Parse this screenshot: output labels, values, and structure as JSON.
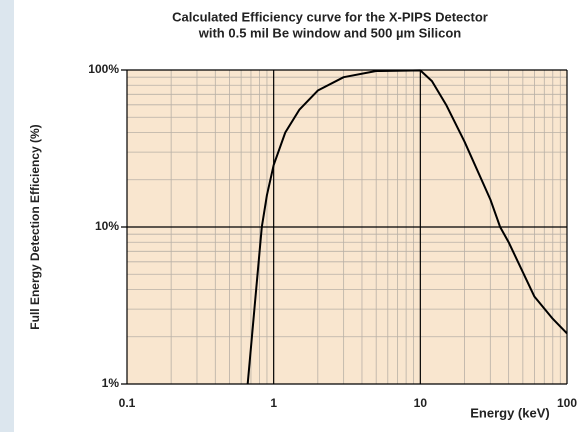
{
  "chart_data": {
    "type": "line",
    "title": [
      "Calculated Efficiency curve for the X-PIPS Detector",
      "with 0.5 mil Be window and 500 µm Silicon"
    ],
    "xlabel": "Energy (keV)",
    "ylabel": "Full Energy Detection Efficiency (%)",
    "xscale": "log",
    "yscale": "log",
    "xlim": [
      0.1,
      100
    ],
    "ylim": [
      1,
      100
    ],
    "xticks": [
      0.1,
      1,
      10,
      100
    ],
    "yticks": [
      {
        "value": 1,
        "label": "1%"
      },
      {
        "value": 10,
        "label": "10%"
      },
      {
        "value": 100,
        "label": "100%"
      }
    ],
    "grid": true,
    "minor_grid": true,
    "series": [
      {
        "color": "#000000",
        "x": [
          0.665,
          0.75,
          0.83,
          0.9,
          1,
          1.2,
          1.5,
          2,
          3,
          5,
          10,
          12,
          15,
          20,
          30,
          35,
          40,
          60,
          80,
          100
        ],
        "values": [
          1,
          3.5,
          10,
          16,
          24.8,
          40,
          56,
          74,
          90,
          98.5,
          99.5,
          85,
          60,
          35,
          15,
          10,
          8,
          3.6,
          2.6,
          2.1
        ]
      }
    ]
  }
}
